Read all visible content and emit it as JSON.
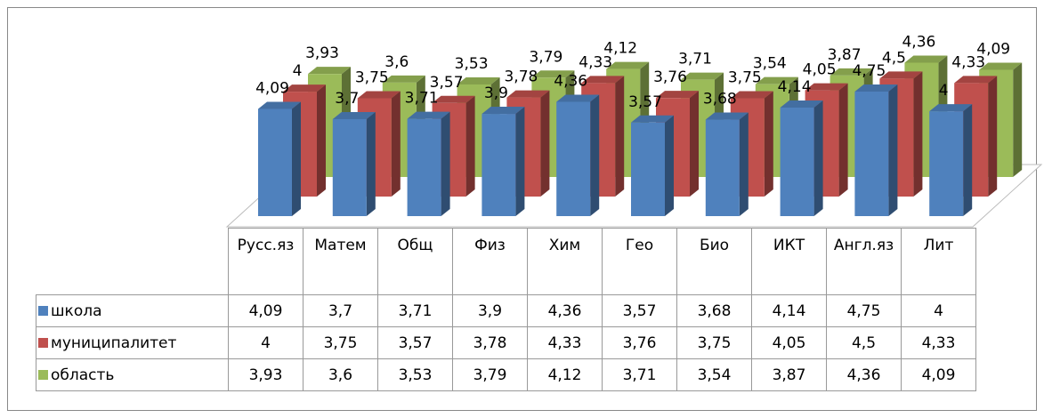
{
  "chart_data": {
    "type": "bar",
    "categories": [
      "Русс.яз",
      "Матем",
      "Общ",
      "Физ",
      "Хим",
      "Гео",
      "Био",
      "ИКТ",
      "Англ.яз",
      "Лит"
    ],
    "series": [
      {
        "name": "школа",
        "color": "#4f81bd",
        "values": [
          4.09,
          3.7,
          3.71,
          3.9,
          4.36,
          3.57,
          3.68,
          4.14,
          4.75,
          4
        ],
        "value_labels": [
          "4,09",
          "3,7",
          "3,71",
          "3,9",
          "4,36",
          "3,57",
          "3,68",
          "4,14",
          "4,75",
          "4"
        ]
      },
      {
        "name": "муниципалитет",
        "color": "#c0504d",
        "values": [
          4,
          3.75,
          3.57,
          3.78,
          4.33,
          3.76,
          3.75,
          4.05,
          4.5,
          4.33
        ],
        "value_labels": [
          "4",
          "3,75",
          "3,57",
          "3,78",
          "4,33",
          "3,76",
          "3,75",
          "4,05",
          "4,5",
          "4,33"
        ]
      },
      {
        "name": "область",
        "color": "#9bbb59",
        "values": [
          3.93,
          3.6,
          3.53,
          3.79,
          4.12,
          3.71,
          3.54,
          3.87,
          4.36,
          4.09
        ],
        "value_labels": [
          "3,93",
          "3,6",
          "3,53",
          "3,79",
          "4,12",
          "3,71",
          "3,54",
          "3,87",
          "4,36",
          "4,09"
        ]
      }
    ]
  }
}
